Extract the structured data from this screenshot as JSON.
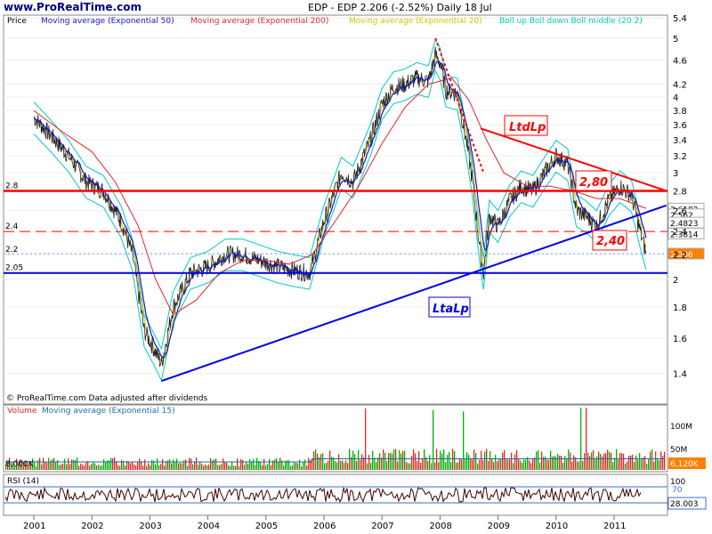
{
  "header": {
    "site": "www.ProRealTime.com",
    "symbol_line": "EDP - EDP    2.206 (-2.52%)    Daily  18 Jul"
  },
  "legend": {
    "price": "Price",
    "ma50": "Moving average (Exponential 50)",
    "ma200": "Moving average (Exponential 200)",
    "ma20": "Moving average (Exponential 20)",
    "boll": "Boll up Boll down Boll middle (20 2)"
  },
  "footer_note": "© ProRealTime.com  Data adjusted after dividends",
  "colors": {
    "price": "#222222",
    "ma50": "#1414c8",
    "ma200": "#e02828",
    "ma20": "#c8c800",
    "boll": "#00c8c8",
    "resistance": "#ff0000",
    "support": "#0000e0",
    "volume": "#00b000",
    "rsi": "#400000"
  },
  "annotations": {
    "ltd": "LtdLp",
    "lta": "LtaLp",
    "box280": "2,80",
    "box240": "2,40"
  },
  "volume_panel": {
    "title": "Volume",
    "ma": "Moving average (Exponential 15)",
    "last_ma_label": "8,000K",
    "last_value": "6,120K",
    "ticks": [
      "100M",
      "50M"
    ]
  },
  "rsi_panel": {
    "title": "RSI (14)",
    "ticks": [
      "100",
      "70"
    ],
    "last_value": "28.003"
  },
  "chart_data": {
    "type": "line",
    "title": "EDP - EDP",
    "xlabel": "",
    "ylabel": "",
    "x_ticks": [
      "2001",
      "2002",
      "2003",
      "2004",
      "2005",
      "2006",
      "2007",
      "2008",
      "2009",
      "2010",
      "2011"
    ],
    "y_ticks": [
      5.4,
      5,
      4.6,
      4.2,
      4,
      3.8,
      3.6,
      3.4,
      3.2,
      3,
      2.8,
      2.6,
      2.4,
      2.2,
      2,
      1.8,
      1.6,
      1.4
    ],
    "left_ticks": [
      2.8,
      2.4,
      2.2,
      2.05
    ],
    "ylim": [
      1.25,
      5.5
    ],
    "y_scale": "log",
    "series": [
      {
        "name": "Price",
        "x": [
          2001.0,
          2001.3,
          2001.6,
          2001.9,
          2002.2,
          2002.5,
          2002.7,
          2002.9,
          2003.05,
          2003.2,
          2003.4,
          2003.7,
          2004.0,
          2004.3,
          2004.6,
          2004.9,
          2005.2,
          2005.5,
          2005.75,
          2006.0,
          2006.3,
          2006.5,
          2006.8,
          2007.0,
          2007.2,
          2007.4,
          2007.6,
          2007.8,
          2007.92,
          2008.0,
          2008.1,
          2008.3,
          2008.45,
          2008.55,
          2008.7,
          2008.75,
          2008.85,
          2009.0,
          2009.2,
          2009.4,
          2009.6,
          2009.8,
          2010.0,
          2010.2,
          2010.35,
          2010.5,
          2010.7,
          2010.9,
          2011.1,
          2011.3,
          2011.45,
          2011.55
        ],
        "values": [
          3.7,
          3.45,
          3.2,
          2.9,
          2.8,
          2.5,
          2.2,
          1.65,
          1.55,
          1.45,
          1.8,
          2.05,
          2.1,
          2.2,
          2.2,
          2.15,
          2.1,
          2.07,
          2.05,
          2.5,
          3.0,
          2.9,
          3.4,
          3.9,
          4.15,
          4.2,
          4.3,
          4.25,
          4.7,
          4.55,
          4.1,
          4.05,
          3.4,
          2.95,
          2.2,
          2.05,
          2.55,
          2.45,
          2.7,
          2.85,
          2.8,
          3.0,
          3.2,
          3.1,
          2.6,
          2.55,
          2.45,
          2.7,
          2.85,
          2.75,
          2.4,
          2.206
        ]
      },
      {
        "name": "Moving average (Exponential 200)",
        "x": [
          2001.0,
          2001.5,
          2002.0,
          2002.4,
          2002.8,
          2003.1,
          2003.4,
          2003.8,
          2004.2,
          2004.6,
          2005.0,
          2005.4,
          2005.8,
          2006.2,
          2006.6,
          2007.0,
          2007.4,
          2007.8,
          2008.2,
          2008.5,
          2008.8,
          2009.1,
          2009.5,
          2009.9,
          2010.3,
          2010.7,
          2011.1,
          2011.55
        ],
        "values": [
          3.8,
          3.5,
          3.25,
          2.9,
          2.45,
          2.0,
          1.75,
          1.85,
          2.05,
          2.15,
          2.15,
          2.12,
          2.2,
          2.5,
          2.85,
          3.35,
          3.85,
          4.2,
          4.3,
          3.95,
          3.4,
          3.0,
          2.85,
          2.85,
          2.8,
          2.72,
          2.72,
          2.62
        ]
      }
    ],
    "last_price": 2.206,
    "labels_right": [
      "2.6182",
      "2.562",
      "2.4823",
      "2.3814",
      "2.206"
    ],
    "levels": {
      "resistance": 2.8,
      "dashed": 2.4,
      "support": 2.05,
      "last": 2.206
    },
    "trendlines": [
      {
        "name": "LtdLp",
        "from": [
          2008.7,
          3.55
        ],
        "to": [
          2011.9,
          2.8
        ]
      },
      {
        "name": "LtdLp-steep",
        "from": [
          2007.92,
          5.0
        ],
        "to": [
          2008.75,
          3.0
        ]
      },
      {
        "name": "LtaLp",
        "from": [
          2003.2,
          1.36
        ],
        "to": [
          2011.9,
          2.65
        ]
      }
    ],
    "legend_position": "top"
  }
}
